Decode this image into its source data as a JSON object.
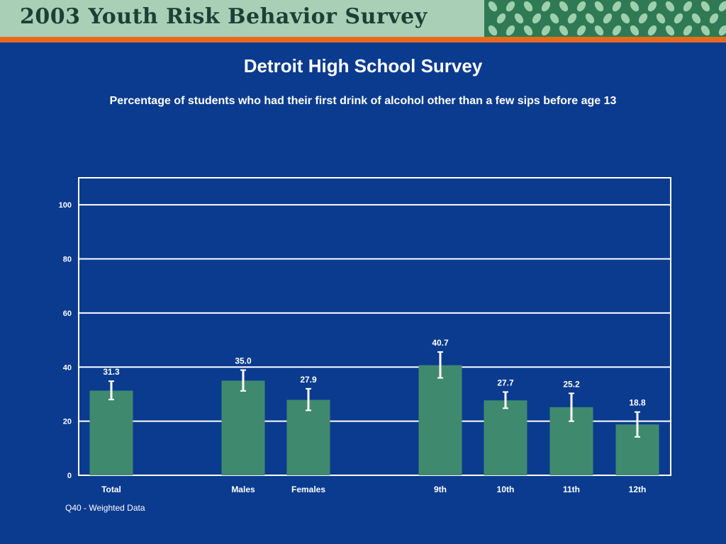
{
  "banner": {
    "title": "2003 Youth Risk Behavior Survey"
  },
  "colors": {
    "background": "#0b3b8f",
    "bar": "#3f8a6e",
    "banner_bg": "#a9cfb6",
    "stripe": "#e86a1f",
    "text": "#ffffff"
  },
  "chart_data": {
    "type": "bar",
    "title": "Detroit High School Survey",
    "subtitle": "Percentage of students who had their first drink of alcohol other than a few sips before age 13",
    "xlabel": "",
    "ylabel": "",
    "ylim": [
      0,
      110
    ],
    "yticks": [
      0,
      20,
      40,
      60,
      80,
      100
    ],
    "grid": true,
    "categories": [
      "Total",
      "Males",
      "Females",
      "9th",
      "10th",
      "11th",
      "12th"
    ],
    "groups": [
      [
        "Total"
      ],
      [
        "Males",
        "Females"
      ],
      [
        "9th",
        "10th",
        "11th",
        "12th"
      ]
    ],
    "values": [
      31.3,
      35.0,
      27.9,
      40.7,
      27.7,
      25.2,
      18.8
    ],
    "value_labels": [
      "31.3",
      "35.0",
      "27.9",
      "40.7",
      "27.7",
      "25.2",
      "18.8"
    ],
    "ci_lower": [
      28.0,
      31.2,
      24.0,
      36.0,
      24.8,
      20.0,
      14.2
    ],
    "ci_upper": [
      34.8,
      38.9,
      32.0,
      45.6,
      30.8,
      30.3,
      23.4
    ]
  },
  "footnote": "Q40 - Weighted Data"
}
